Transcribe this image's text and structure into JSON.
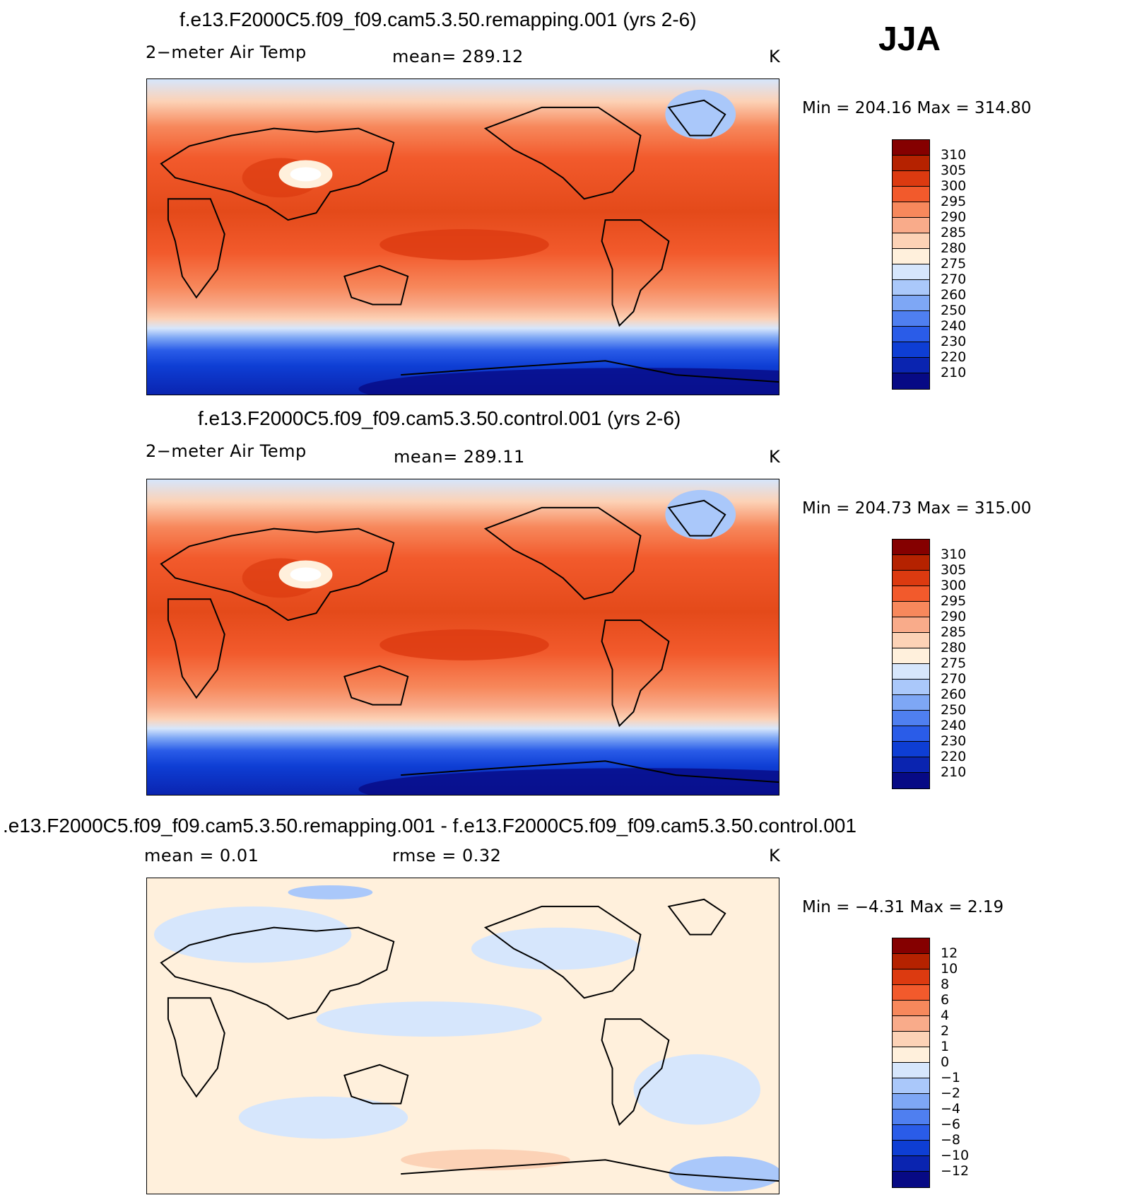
{
  "season": "JJA",
  "colors": {
    "t": [
      "#070a85",
      "#0a24b0",
      "#0e3ed4",
      "#2a5ce8",
      "#4f7ff0",
      "#7ea7f5",
      "#aac8fa",
      "#d6e6fc",
      "#fff0dc",
      "#fcd2b6",
      "#f9ab8a",
      "#f7885c",
      "#f25a2c",
      "#dc3a10",
      "#b52200",
      "#850000"
    ],
    "d": [
      "#070a85",
      "#0a24b0",
      "#0e3ed4",
      "#2a5ce8",
      "#4f7ff0",
      "#7ea7f5",
      "#aac8fa",
      "#d6e6fc",
      "#fff0dc",
      "#fcd2b6",
      "#f9ab8a",
      "#f7885c",
      "#f25a2c",
      "#dc3a10",
      "#b52200",
      "#850000"
    ]
  },
  "panels": [
    {
      "title": "f.e13.F2000C5.f09_f09.cam5.3.50.remapping.001 (yrs 2-6)",
      "left": "2−meter Air Temp",
      "center": "mean=  289.12",
      "units": "K",
      "minmax": "Min  =  204.16  Max  =  314.80",
      "levels": [
        "310",
        "305",
        "300",
        "295",
        "290",
        "285",
        "280",
        "275",
        "270",
        "260",
        "250",
        "240",
        "230",
        "220",
        "210"
      ]
    },
    {
      "title": "f.e13.F2000C5.f09_f09.cam5.3.50.control.001 (yrs 2-6)",
      "left": "2−meter Air Temp",
      "center": "mean=  289.11",
      "units": "K",
      "minmax": "Min  =  204.73  Max  =  315.00",
      "levels": [
        "310",
        "305",
        "300",
        "295",
        "290",
        "285",
        "280",
        "275",
        "270",
        "260",
        "250",
        "240",
        "230",
        "220",
        "210"
      ]
    },
    {
      "title": ".e13.F2000C5.f09_f09.cam5.3.50.remapping.001 - f.e13.F2000C5.f09_f09.cam5.3.50.control.001",
      "left": "mean  =       0.01",
      "center": "rmse  =      0.32",
      "units": "K",
      "minmax": "Min  =    −4.31  Max  =      2.19",
      "levels": [
        "12",
        "10",
        "8",
        "6",
        "4",
        "2",
        "1",
        "0",
        "−1",
        "−2",
        "−4",
        "−6",
        "−8",
        "−10",
        "−12"
      ]
    }
  ]
}
